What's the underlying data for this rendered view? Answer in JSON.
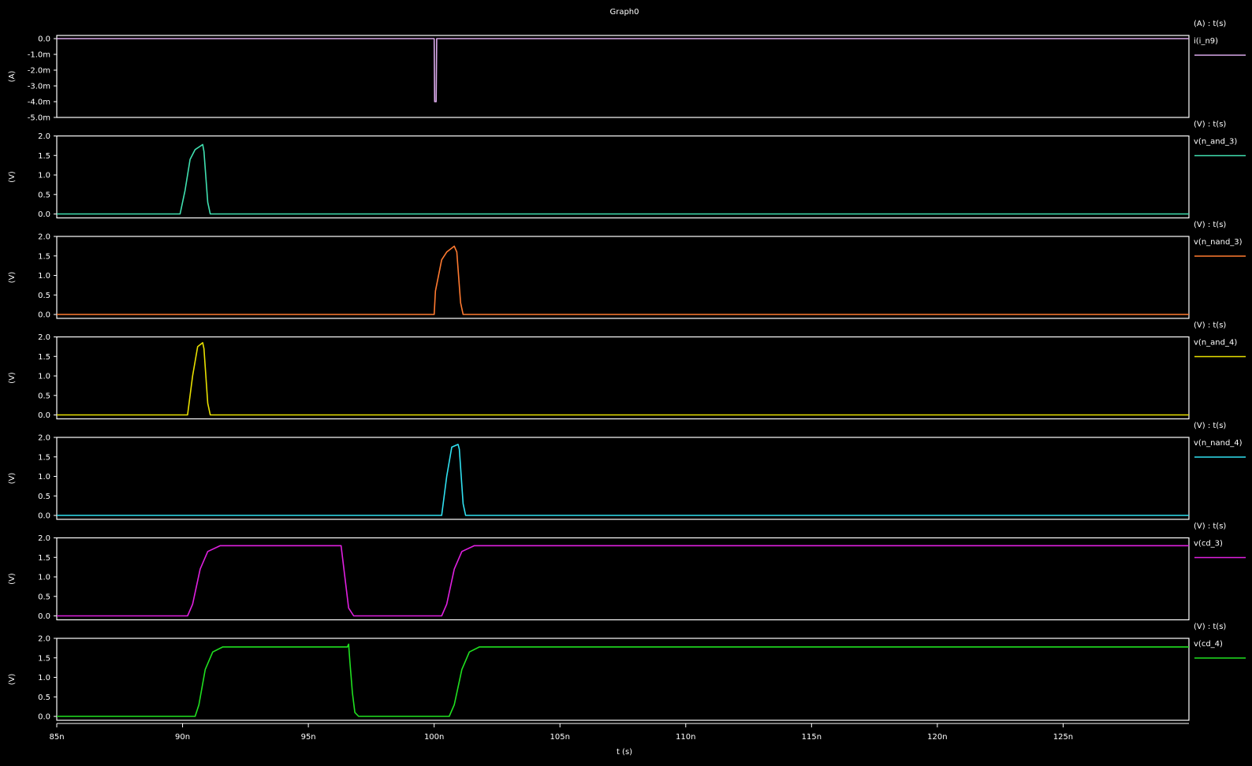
{
  "title": "Graph0",
  "xlabel": "t (s)",
  "x_tick_labels": [
    "85n",
    "90n",
    "95n",
    "100n",
    "105n",
    "110n",
    "115n",
    "120n",
    "125n"
  ],
  "chart_data": [
    {
      "type": "line",
      "axis_header": "(A) : t(s)",
      "ylabel": "(A)",
      "ylim": [
        -0.005,
        0.0002
      ],
      "y_ticks": [
        0,
        -0.001,
        -0.002,
        -0.003,
        -0.004,
        -0.005
      ],
      "y_tick_labels": [
        "0.0",
        "-1.0m",
        "-2.0m",
        "-3.0m",
        "-4.0m",
        "-5.0m"
      ],
      "xlim": [
        85,
        130
      ],
      "series": [
        {
          "name": "i(i_n9)",
          "color": "#d8a8e8",
          "x": [
            85,
            100.0,
            100.02,
            100.08,
            100.1,
            130
          ],
          "y": [
            0,
            0,
            -0.004,
            -0.004,
            0,
            0
          ]
        }
      ]
    },
    {
      "type": "line",
      "axis_header": "(V) : t(s)",
      "ylabel": "(V)",
      "ylim": [
        -0.1,
        2.0
      ],
      "y_ticks": [
        0,
        0.5,
        1.0,
        1.5,
        2.0
      ],
      "y_tick_labels": [
        "0.0",
        "0.5",
        "1.0",
        "1.5",
        "2.0"
      ],
      "xlim": [
        85,
        130
      ],
      "series": [
        {
          "name": "v(n_and_3)",
          "color": "#40e0b0",
          "x": [
            85,
            89.9,
            90.1,
            90.3,
            90.5,
            90.8,
            90.85,
            91.0,
            91.1,
            130
          ],
          "y": [
            0,
            0,
            0.6,
            1.4,
            1.65,
            1.78,
            1.6,
            0.3,
            0,
            0
          ]
        }
      ]
    },
    {
      "type": "line",
      "axis_header": "(V) : t(s)",
      "ylabel": "(V)",
      "ylim": [
        -0.1,
        2.0
      ],
      "y_ticks": [
        0,
        0.5,
        1.0,
        1.5,
        2.0
      ],
      "y_tick_labels": [
        "0.0",
        "0.5",
        "1.0",
        "1.5",
        "2.0"
      ],
      "xlim": [
        85,
        130
      ],
      "series": [
        {
          "name": "v(n_nand_3)",
          "color": "#ff7a30",
          "x": [
            85,
            100.0,
            100.05,
            100.3,
            100.5,
            100.8,
            100.9,
            101.05,
            101.15,
            130
          ],
          "y": [
            0,
            0,
            0.6,
            1.4,
            1.6,
            1.75,
            1.6,
            0.3,
            0,
            0
          ]
        }
      ]
    },
    {
      "type": "line",
      "axis_header": "(V) : t(s)",
      "ylabel": "(V)",
      "ylim": [
        -0.1,
        2.0
      ],
      "y_ticks": [
        0,
        0.5,
        1.0,
        1.5,
        2.0
      ],
      "y_tick_labels": [
        "0.0",
        "0.5",
        "1.0",
        "1.5",
        "2.0"
      ],
      "xlim": [
        85,
        130
      ],
      "series": [
        {
          "name": "v(n_and_4)",
          "color": "#e8e000",
          "x": [
            85,
            90.2,
            90.4,
            90.6,
            90.8,
            90.85,
            91.0,
            91.1,
            130
          ],
          "y": [
            0,
            0,
            1.0,
            1.75,
            1.85,
            1.7,
            0.3,
            0,
            0
          ]
        }
      ]
    },
    {
      "type": "line",
      "axis_header": "(V) : t(s)",
      "ylabel": "(V)",
      "ylim": [
        -0.1,
        2.0
      ],
      "y_ticks": [
        0,
        0.5,
        1.0,
        1.5,
        2.0
      ],
      "y_tick_labels": [
        "0.0",
        "0.5",
        "1.0",
        "1.5",
        "2.0"
      ],
      "xlim": [
        85,
        130
      ],
      "series": [
        {
          "name": "v(n_nand_4)",
          "color": "#30e0f0",
          "x": [
            85,
            100.3,
            100.5,
            100.7,
            100.95,
            101.0,
            101.15,
            101.25,
            130
          ],
          "y": [
            0,
            0,
            1.0,
            1.75,
            1.82,
            1.7,
            0.3,
            0,
            0
          ]
        }
      ]
    },
    {
      "type": "line",
      "axis_header": "(V) : t(s)",
      "ylabel": "(V)",
      "ylim": [
        -0.1,
        2.0
      ],
      "y_ticks": [
        0,
        0.5,
        1.0,
        1.5,
        2.0
      ],
      "y_tick_labels": [
        "0.0",
        "0.5",
        "1.0",
        "1.5",
        "2.0"
      ],
      "xlim": [
        85,
        130
      ],
      "series": [
        {
          "name": "v(cd_3)",
          "color": "#e020e0",
          "x": [
            85,
            90.2,
            90.4,
            90.7,
            91.0,
            91.5,
            96.3,
            96.45,
            96.6,
            96.8,
            100.3,
            100.5,
            100.8,
            101.1,
            101.6,
            130
          ],
          "y": [
            0,
            0,
            0.3,
            1.2,
            1.65,
            1.8,
            1.8,
            1.0,
            0.2,
            0,
            0,
            0.3,
            1.2,
            1.65,
            1.8,
            1.8
          ]
        }
      ]
    },
    {
      "type": "line",
      "axis_header": "(V) : t(s)",
      "ylabel": "(V)",
      "ylim": [
        -0.1,
        2.0
      ],
      "y_ticks": [
        0,
        0.5,
        1.0,
        1.5,
        2.0
      ],
      "y_tick_labels": [
        "0.0",
        "0.5",
        "1.0",
        "1.5",
        "2.0"
      ],
      "xlim": [
        85,
        130
      ],
      "series": [
        {
          "name": "v(cd_4)",
          "color": "#20e020",
          "x": [
            85,
            90.5,
            90.65,
            90.9,
            91.2,
            91.6,
            96.55,
            96.6,
            96.65,
            96.75,
            96.85,
            97.0,
            100.6,
            100.8,
            101.1,
            101.4,
            101.8,
            130
          ],
          "y": [
            0,
            0,
            0.3,
            1.2,
            1.65,
            1.78,
            1.78,
            1.85,
            1.4,
            0.6,
            0.1,
            0,
            0,
            0.3,
            1.2,
            1.65,
            1.78,
            1.78
          ]
        }
      ]
    }
  ]
}
